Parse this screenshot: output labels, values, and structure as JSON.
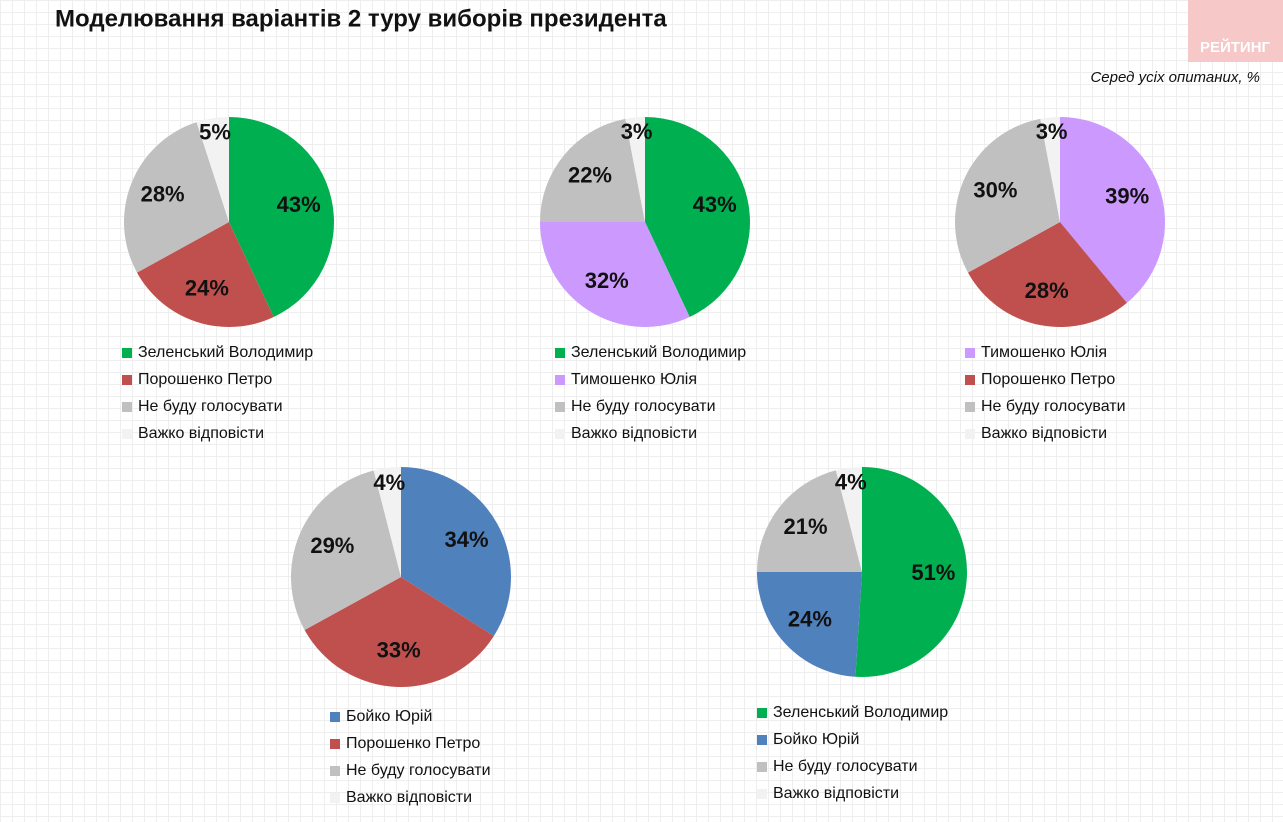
{
  "title": "Моделювання варіантів 2 туру виборів президента",
  "subtitle": "Серед усіх опитаних, %",
  "logo": "РЕЙТИНГ",
  "chart_data": [
    {
      "type": "pie",
      "categories": [
        "Зеленський Володимир",
        "Порошенко Петро",
        "Не буду голосувати",
        "Важко відповісти"
      ],
      "values": [
        43,
        24,
        28,
        5
      ],
      "value_labels": [
        "43%",
        "24%",
        "28%",
        "5%"
      ],
      "colors": [
        "#00b050",
        "#c0504d",
        "#c0c0c0",
        "#f2f2f2"
      ]
    },
    {
      "type": "pie",
      "categories": [
        "Зеленський Володимир",
        "Тимошенко Юлія",
        "Не буду голосувати",
        "Важко відповісти"
      ],
      "values": [
        43,
        32,
        22,
        3
      ],
      "value_labels": [
        "43%",
        "32%",
        "22%",
        "3%"
      ],
      "colors": [
        "#00b050",
        "#cc99ff",
        "#c0c0c0",
        "#f2f2f2"
      ]
    },
    {
      "type": "pie",
      "categories": [
        "Тимошенко Юлія",
        "Порошенко Петро",
        "Не буду голосувати",
        "Важко відповісти"
      ],
      "values": [
        39,
        28,
        30,
        3
      ],
      "value_labels": [
        "39%",
        "28%",
        "30%",
        "3%"
      ],
      "colors": [
        "#cc99ff",
        "#c0504d",
        "#c0c0c0",
        "#f2f2f2"
      ]
    },
    {
      "type": "pie",
      "categories": [
        "Бойко Юрій",
        "Порошенко Петро",
        "Не буду голосувати",
        "Важко відповісти"
      ],
      "values": [
        34,
        33,
        29,
        4
      ],
      "value_labels": [
        "34%",
        "33%",
        "29%",
        "4%"
      ],
      "colors": [
        "#4f81bd",
        "#c0504d",
        "#c0c0c0",
        "#f2f2f2"
      ]
    },
    {
      "type": "pie",
      "categories": [
        "Зеленський Володимир",
        "Бойко Юрій",
        "Не буду голосувати",
        "Важко відповісти"
      ],
      "values": [
        51,
        24,
        21,
        4
      ],
      "value_labels": [
        "51%",
        "24%",
        "21%",
        "4%"
      ],
      "colors": [
        "#00b050",
        "#4f81bd",
        "#c0c0c0",
        "#f2f2f2"
      ]
    }
  ]
}
